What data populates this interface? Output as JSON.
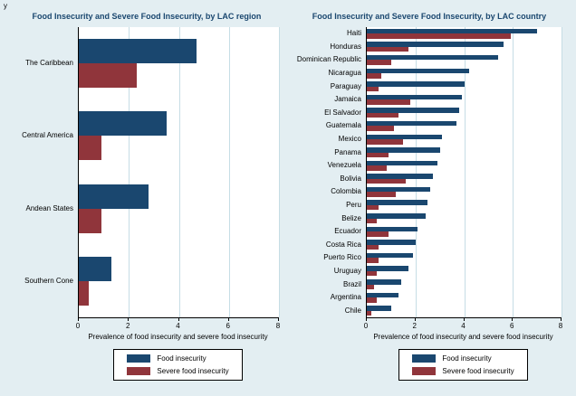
{
  "figure": {
    "y_label": "y"
  },
  "chart_data": [
    {
      "type": "bar",
      "orientation": "horizontal",
      "title": "Food Insecurity and Severe Food Insecurity, by LAC region",
      "xlabel": "Prevalence of food insecurity and severe food insecurity",
      "xlim": [
        0,
        8
      ],
      "xticks": [
        0,
        2,
        4,
        6,
        8
      ],
      "grid": true,
      "legend_position": "bottom",
      "categories": [
        "The Caribbean",
        "Central America",
        "Andean States",
        "Southern Cone"
      ],
      "series": [
        {
          "name": "Food insecurity",
          "color": "#1a476f",
          "values": [
            4.7,
            3.5,
            2.8,
            1.3
          ]
        },
        {
          "name": "Severe food insecurity",
          "color": "#90353b",
          "values": [
            2.3,
            0.9,
            0.9,
            0.4
          ]
        }
      ]
    },
    {
      "type": "bar",
      "orientation": "horizontal",
      "title": "Food Insecurity and Severe Food Insecurity, by LAC country",
      "xlabel": "Prevalence of food insecurity and severe food insecurity",
      "xlim": [
        0,
        8
      ],
      "xticks": [
        0,
        2,
        4,
        6,
        8
      ],
      "grid": true,
      "legend_position": "bottom",
      "categories": [
        "Haiti",
        "Honduras",
        "Dominican Republic",
        "Nicaragua",
        "Paraguay",
        "Jamaica",
        "El Salvador",
        "Guatemala",
        "Mexico",
        "Panama",
        "Venezuela",
        "Bolivia",
        "Colombia",
        "Peru",
        "Belize",
        "Ecuador",
        "Costa Rica",
        "Puerto Rico",
        "Uruguay",
        "Brazil",
        "Argentina",
        "Chile"
      ],
      "series": [
        {
          "name": "Food insecurity",
          "color": "#1a476f",
          "values": [
            7.0,
            5.6,
            5.4,
            4.2,
            4.0,
            3.9,
            3.8,
            3.7,
            3.1,
            3.0,
            2.9,
            2.7,
            2.6,
            2.5,
            2.4,
            2.1,
            2.0,
            1.9,
            1.7,
            1.4,
            1.3,
            1.0
          ]
        },
        {
          "name": "Severe food insecurity",
          "color": "#90353b",
          "values": [
            5.9,
            1.7,
            1.0,
            0.6,
            0.5,
            1.8,
            1.3,
            1.1,
            1.5,
            0.9,
            0.8,
            1.6,
            1.2,
            0.5,
            0.4,
            0.9,
            0.5,
            0.5,
            0.4,
            0.3,
            0.4,
            0.2
          ]
        }
      ]
    }
  ]
}
